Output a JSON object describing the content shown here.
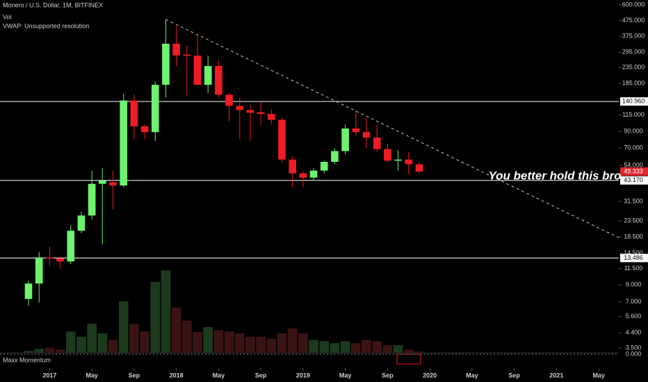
{
  "chart_data": {
    "type": "candlestick",
    "title": "Monero / U.S. Dollar, 1M, BITFINEX",
    "indicators": [
      "Vol",
      "VWAP: Unsupported resolution"
    ],
    "log_scale": true,
    "up_color": "#6ef26e",
    "down_color": "#ee1c25",
    "volume_up_color": "#1c3a1c",
    "volume_down_color": "#3a1414",
    "ylim": [
      3.5,
      600
    ],
    "yticks": [
      {
        "value": 600,
        "label": "600.000"
      },
      {
        "value": 475,
        "label": "475.000"
      },
      {
        "value": 375,
        "label": "375.000"
      },
      {
        "value": 295,
        "label": "295.000"
      },
      {
        "value": 235,
        "label": "235.000"
      },
      {
        "value": 185,
        "label": "185.000"
      },
      {
        "value": 115,
        "label": "115.000"
      },
      {
        "value": 90,
        "label": "90.000"
      },
      {
        "value": 70,
        "label": "70.000"
      },
      {
        "value": 54,
        "label": "54.000"
      },
      {
        "value": 31.5,
        "label": "31.500"
      },
      {
        "value": 23.5,
        "label": "23.500"
      },
      {
        "value": 18.5,
        "label": "18.500"
      },
      {
        "value": 14.5,
        "label": "14.500"
      },
      {
        "value": 11.5,
        "label": "11.500"
      },
      {
        "value": 9,
        "label": "9.000"
      },
      {
        "value": 7,
        "label": "7.000"
      },
      {
        "value": 5.6,
        "label": "5.600"
      },
      {
        "value": 4.4,
        "label": "4.400"
      },
      {
        "value": 3.5,
        "label": "3.500"
      }
    ],
    "levels": [
      {
        "value": 140.96,
        "label": "140.960"
      },
      {
        "value": 43.17,
        "label": "43.170"
      },
      {
        "value": 13.486,
        "label": "13.486"
      }
    ],
    "last_price": {
      "value": 49.333,
      "label": "49.333"
    },
    "xlim": [
      -2.7,
      55.9
    ],
    "xticks": [
      {
        "value": 2,
        "label": "2017"
      },
      {
        "value": 6,
        "label": "May"
      },
      {
        "value": 10,
        "label": "Sep"
      },
      {
        "value": 14,
        "label": "2018"
      },
      {
        "value": 18,
        "label": "May"
      },
      {
        "value": 22,
        "label": "Sep"
      },
      {
        "value": 26,
        "label": "2019"
      },
      {
        "value": 30,
        "label": "May"
      },
      {
        "value": 34,
        "label": "Sep"
      },
      {
        "value": 38,
        "label": "2020"
      },
      {
        "value": 42,
        "label": "May"
      },
      {
        "value": 46,
        "label": "Sep"
      },
      {
        "value": 50,
        "label": "2021"
      },
      {
        "value": 54,
        "label": "May"
      }
    ],
    "candles": [
      {
        "open": 7.3,
        "high": 9.6,
        "low": 6.6,
        "close": 9.2
      },
      {
        "open": 9.2,
        "high": 14.8,
        "low": 6.9,
        "close": 13.6
      },
      {
        "open": 13.6,
        "high": 16,
        "low": 12,
        "close": 13.4
      },
      {
        "open": 13.4,
        "high": 13.8,
        "low": 11.5,
        "close": 12.8
      },
      {
        "open": 12.8,
        "high": 22,
        "low": 12.3,
        "close": 20.3
      },
      {
        "open": 20.3,
        "high": 27,
        "low": 19.5,
        "close": 25.5
      },
      {
        "open": 25.5,
        "high": 50,
        "low": 24,
        "close": 41
      },
      {
        "open": 41,
        "high": 52,
        "low": 16.5,
        "close": 43
      },
      {
        "open": 42,
        "high": 50,
        "low": 28,
        "close": 40
      },
      {
        "open": 40,
        "high": 158,
        "low": 39,
        "close": 143
      },
      {
        "open": 143,
        "high": 156,
        "low": 80,
        "close": 97
      },
      {
        "open": 97,
        "high": 100,
        "low": 80,
        "close": 89
      },
      {
        "open": 89,
        "high": 190,
        "low": 78,
        "close": 181
      },
      {
        "open": 181,
        "high": 482,
        "low": 150,
        "close": 335
      },
      {
        "open": 335,
        "high": 434,
        "low": 240,
        "close": 281
      },
      {
        "open": 285,
        "high": 328,
        "low": 153,
        "close": 280
      },
      {
        "open": 280,
        "high": 383,
        "low": 180,
        "close": 181
      },
      {
        "open": 181,
        "high": 280,
        "low": 160,
        "close": 240
      },
      {
        "open": 240,
        "high": 260,
        "low": 150,
        "close": 156
      },
      {
        "open": 156,
        "high": 160,
        "low": 105,
        "close": 132
      },
      {
        "open": 132,
        "high": 150,
        "low": 80,
        "close": 124
      },
      {
        "open": 124,
        "high": 135,
        "low": 78,
        "close": 119
      },
      {
        "open": 120,
        "high": 140,
        "low": 99,
        "close": 117
      },
      {
        "open": 117,
        "high": 125,
        "low": 100,
        "close": 107
      },
      {
        "open": 107,
        "high": 110,
        "low": 56,
        "close": 59
      },
      {
        "open": 59,
        "high": 62,
        "low": 39,
        "close": 48
      },
      {
        "open": 48,
        "high": 50,
        "low": 39,
        "close": 45
      },
      {
        "open": 45,
        "high": 52,
        "low": 43,
        "close": 50
      },
      {
        "open": 50,
        "high": 58,
        "low": 48,
        "close": 57
      },
      {
        "open": 57,
        "high": 70,
        "low": 55,
        "close": 67
      },
      {
        "open": 67,
        "high": 100,
        "low": 64,
        "close": 94
      },
      {
        "open": 94,
        "high": 124,
        "low": 84,
        "close": 89
      },
      {
        "open": 89,
        "high": 110,
        "low": 70,
        "close": 82
      },
      {
        "open": 82,
        "high": 100,
        "low": 66,
        "close": 69
      },
      {
        "open": 69,
        "high": 75,
        "low": 57,
        "close": 58
      },
      {
        "open": 58,
        "high": 68,
        "low": 50,
        "close": 59
      },
      {
        "open": 59,
        "high": 66,
        "low": 47,
        "close": 55
      },
      {
        "open": 55,
        "high": 57,
        "low": 48,
        "close": 49.333
      }
    ],
    "volume": [
      3,
      6,
      8,
      5,
      33,
      25,
      45,
      30,
      20,
      80,
      45,
      33,
      110,
      128,
      70,
      50,
      32,
      40,
      35,
      33,
      30,
      25,
      25,
      22,
      30,
      38,
      30,
      20,
      18,
      15,
      18,
      15,
      20,
      18,
      12,
      12,
      5,
      2
    ],
    "vlim": [
      0,
      140
    ],
    "trendline": {
      "start_index": 13,
      "values": [
        482,
        18.3
      ]
    },
    "annotation": "You better hold this bro",
    "momentum": {
      "name": "Maxx Momentum",
      "yticks": [
        {
          "value": 0,
          "label": "0.000"
        }
      ]
    }
  }
}
